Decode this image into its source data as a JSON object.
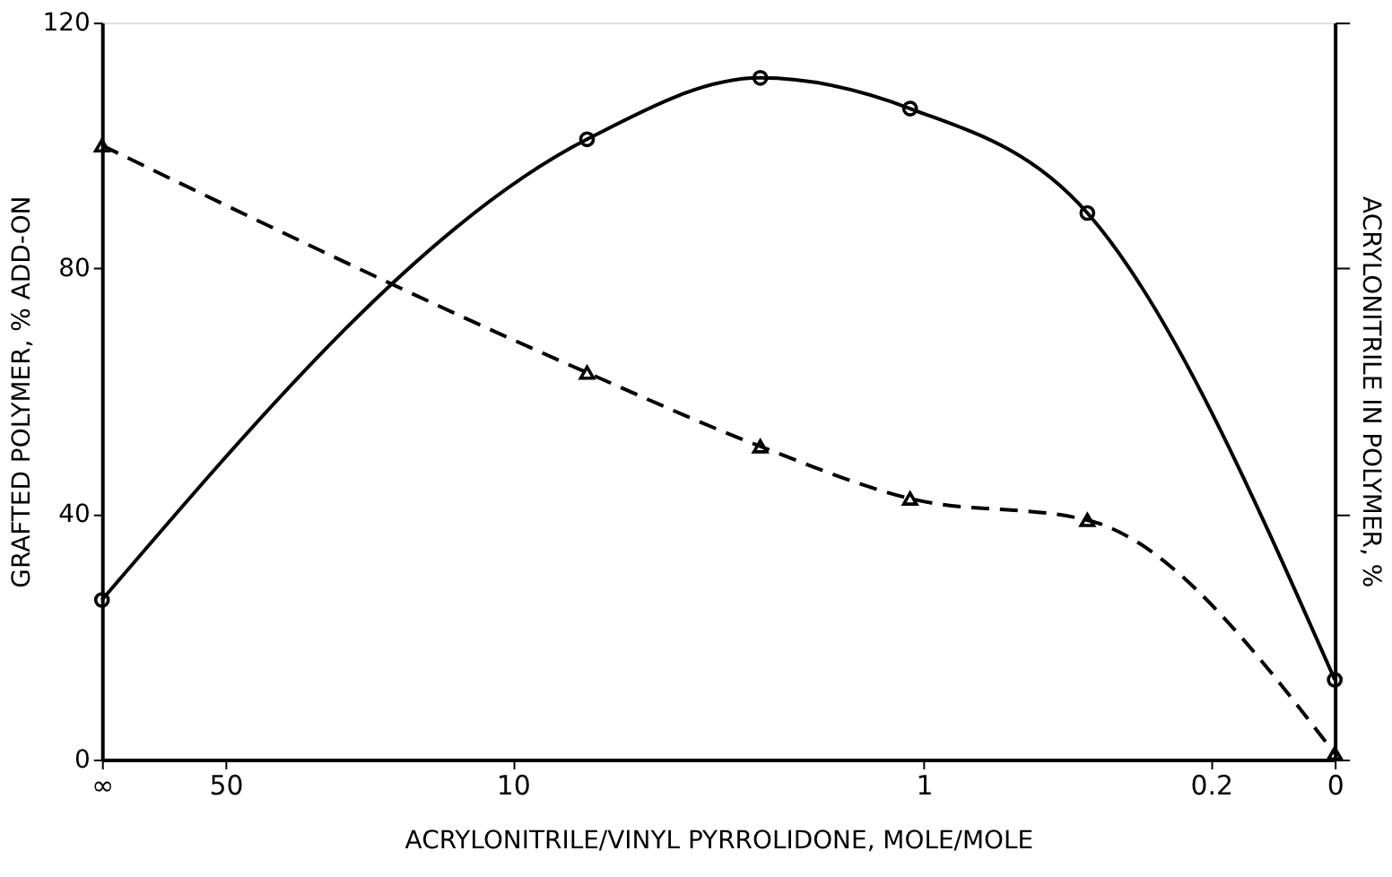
{
  "chart_data": {
    "type": "line",
    "xlabel": "ACRYLONITRILE/VINYL PYRROLIDONE, MOLE/MOLE",
    "ylabel": "GRAFTED POLYMER, % ADD-ON",
    "y2label": "ACRYLONITRILE IN POLYMER, %",
    "log": "x",
    "xlim": [
      100,
      0.1
    ],
    "xticks": [
      {
        "value": 100,
        "label": "∞"
      },
      50,
      10,
      1,
      0.2,
      {
        "value": 0.1,
        "label": "0"
      }
    ],
    "ylim": [
      0,
      120
    ],
    "yticks": [
      0,
      40,
      80,
      120
    ],
    "grid": false,
    "series": [
      {
        "color": "#000000",
        "marker": "circle",
        "line_style": "solid",
        "x": [
          100,
          6.6,
          2.5,
          1.08,
          0.4,
          0.1
        ],
        "values": [
          26,
          101,
          111,
          106,
          89,
          13
        ]
      },
      {
        "color": "#000000",
        "marker": "triangle",
        "line_style": "dashed",
        "x": [
          100,
          6.6,
          2.5,
          1.08,
          0.4,
          0.1
        ],
        "values": [
          100,
          63,
          51,
          42.5,
          39,
          1
        ]
      }
    ]
  }
}
